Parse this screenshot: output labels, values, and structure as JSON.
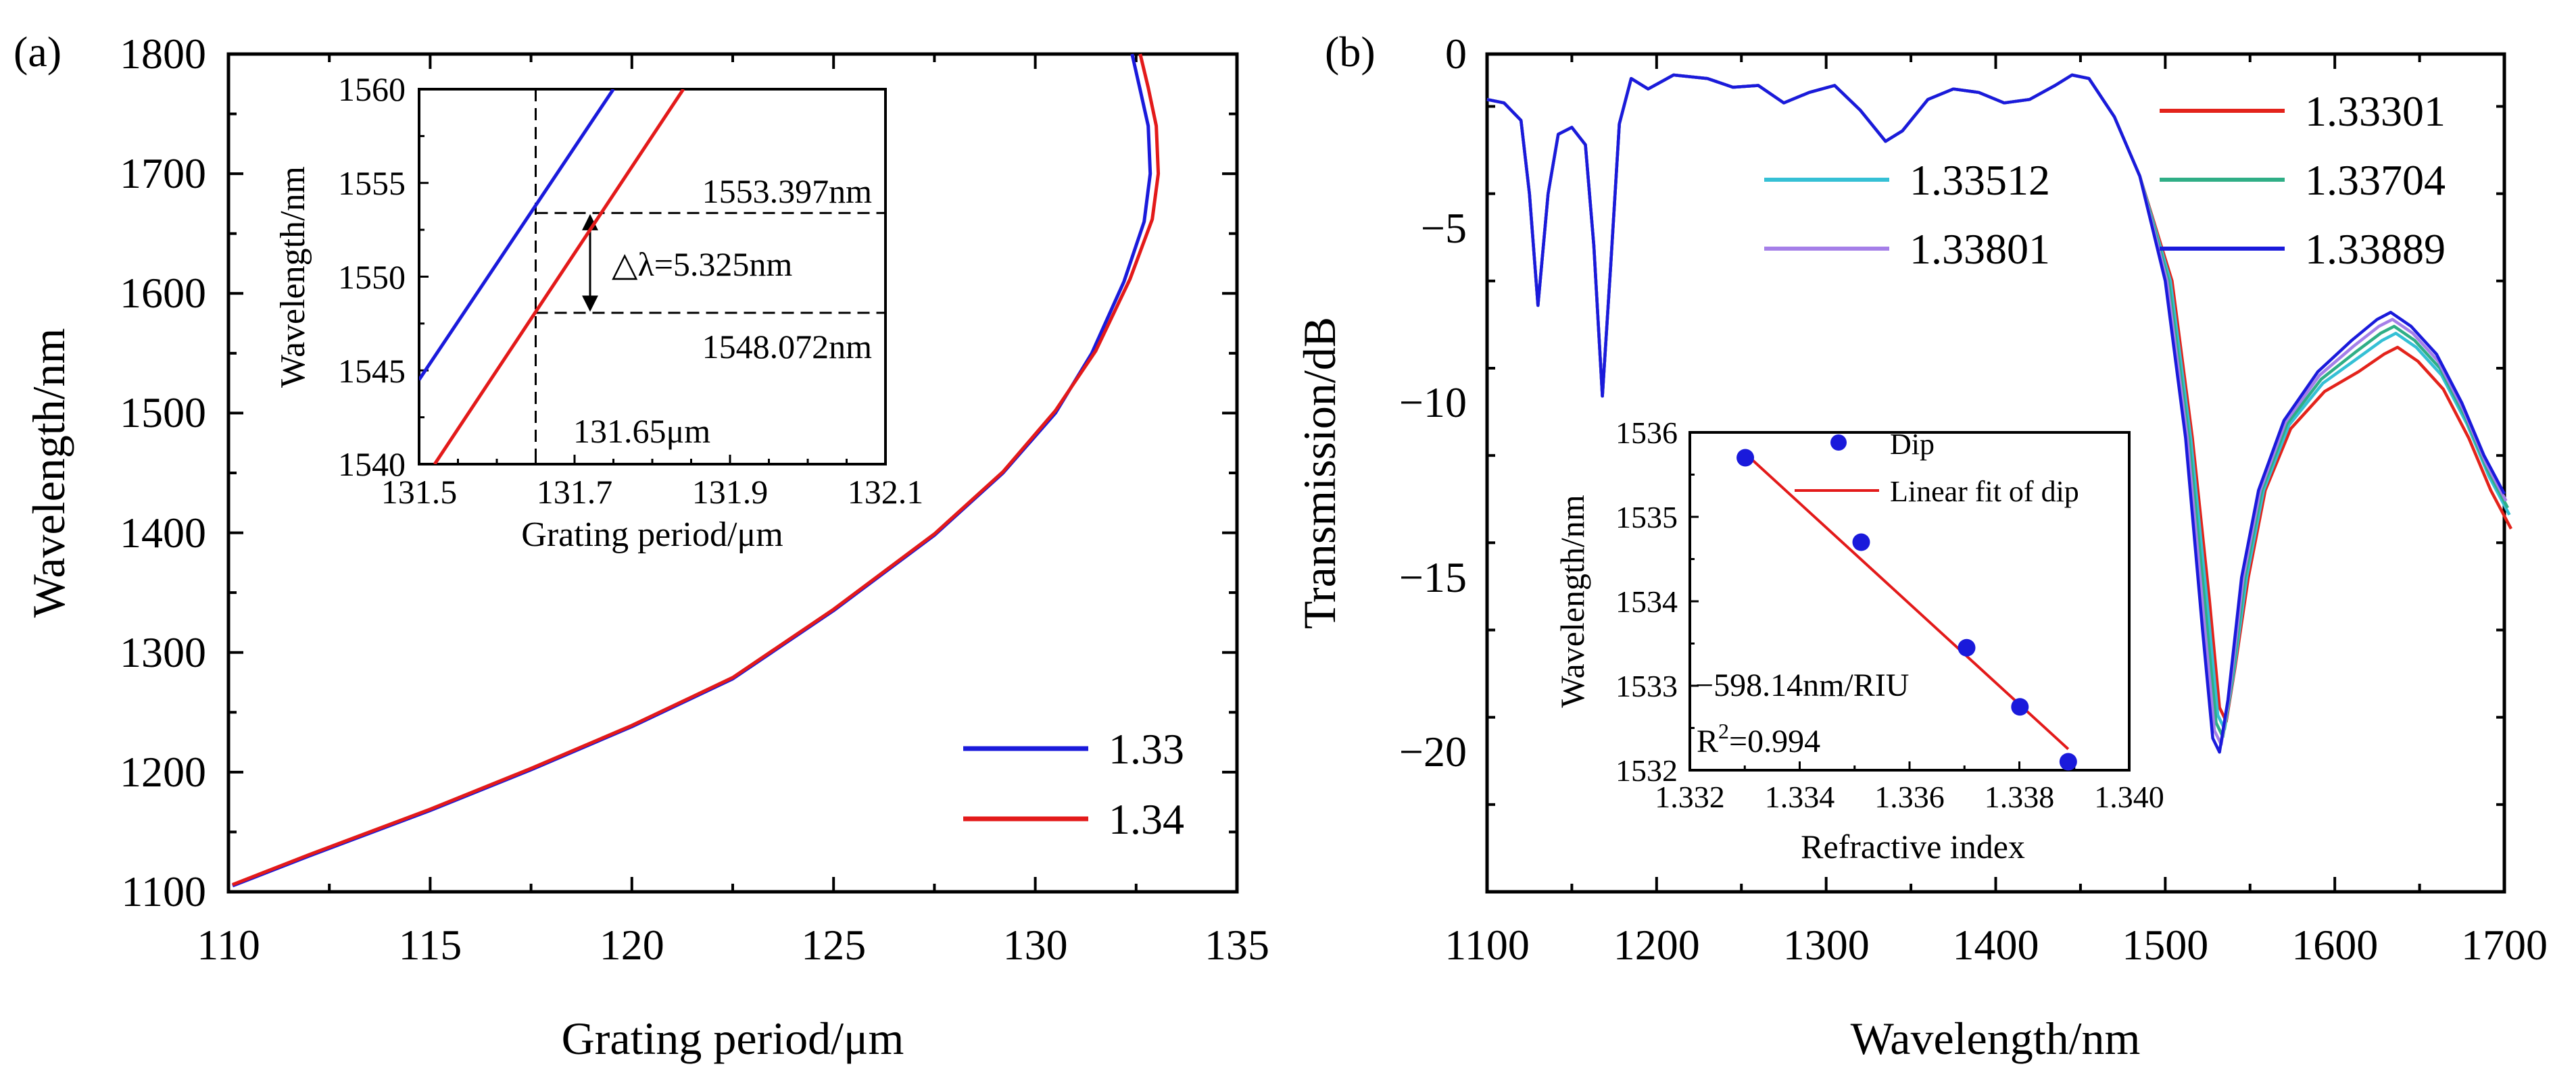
{
  "chart_data": [
    {
      "panel_label": "(a)",
      "type": "line",
      "xlabel": "Grating period/μm",
      "ylabel": "Wavelength/nm",
      "xlim": [
        110,
        135
      ],
      "ylim": [
        1100,
        1800
      ],
      "xticks": [
        110,
        115,
        120,
        125,
        130,
        135
      ],
      "yticks": [
        1100,
        1200,
        1300,
        1400,
        1500,
        1600,
        1700,
        1800
      ],
      "legend": "bottom-right",
      "series": [
        {
          "name": "1.33",
          "color": "#1a1adb",
          "points": [
            [
              110.1,
              1105
            ],
            [
              112,
              1130
            ],
            [
              115,
              1168
            ],
            [
              117.5,
              1202
            ],
            [
              120,
              1238
            ],
            [
              122.5,
              1278
            ],
            [
              125,
              1335
            ],
            [
              127.5,
              1398
            ],
            [
              129.2,
              1450
            ],
            [
              130.5,
              1500
            ],
            [
              131.4,
              1550
            ],
            [
              132.2,
              1610
            ],
            [
              132.7,
              1660
            ],
            [
              132.85,
              1700
            ],
            [
              132.8,
              1740
            ],
            [
              132.6,
              1770
            ],
            [
              132.4,
              1800
            ]
          ]
        },
        {
          "name": "1.34",
          "color": "#e31a1a",
          "points": [
            [
              110.1,
              1106
            ],
            [
              112,
              1131
            ],
            [
              115,
              1169
            ],
            [
              117.5,
              1203
            ],
            [
              120,
              1239
            ],
            [
              122.5,
              1279
            ],
            [
              125,
              1336
            ],
            [
              127.5,
              1399
            ],
            [
              129.2,
              1451
            ],
            [
              130.5,
              1502
            ],
            [
              131.5,
              1552
            ],
            [
              132.35,
              1612
            ],
            [
              132.9,
              1662
            ],
            [
              133.05,
              1700
            ],
            [
              133.0,
              1740
            ],
            [
              132.8,
              1772
            ],
            [
              132.6,
              1800
            ]
          ]
        }
      ],
      "inset": {
        "type": "line",
        "xlabel": "Grating period/μm",
        "ylabel": "Wavelength/nm",
        "xlim": [
          131.5,
          132.1
        ],
        "ylim": [
          1540,
          1560
        ],
        "xticks": [
          "131.5",
          "131.7",
          "131.9",
          "132.1"
        ],
        "yticks": [
          "1540",
          "1545",
          "1550",
          "1555",
          "1560"
        ],
        "series": [
          {
            "name": "1.33",
            "color": "#1a1adb",
            "points": [
              [
                131.5,
                1544.5
              ],
              [
                131.75,
                1560
              ]
            ]
          },
          {
            "name": "1.34",
            "color": "#e31a1a",
            "points": [
              [
                131.52,
                1540
              ],
              [
                131.84,
                1560
              ]
            ]
          }
        ],
        "vline_x": 131.65,
        "hlines_y": [
          1553.397,
          1548.072
        ],
        "annotations": {
          "upper": "1553.397nm",
          "lower": "1548.072nm",
          "delta": "△λ=5.325nm",
          "period": "131.65μm"
        }
      }
    },
    {
      "panel_label": "(b)",
      "type": "line",
      "xlabel": "Wavelength/nm",
      "ylabel": "Transmission/dB",
      "xlim": [
        1100,
        1700
      ],
      "ylim": [
        -24,
        0
      ],
      "xticks": [
        1100,
        1200,
        1300,
        1400,
        1500,
        1600,
        1700
      ],
      "yticks": [
        0,
        -5,
        -10,
        -15,
        -20
      ],
      "ytick_labels": [
        "0",
        "−5",
        "−10",
        "−15",
        "−20"
      ],
      "legend": "top-right",
      "base_spectrum": [
        [
          1100,
          -1.3
        ],
        [
          1110,
          -1.4
        ],
        [
          1120,
          -1.9
        ],
        [
          1125,
          -4.0
        ],
        [
          1130,
          -7.2
        ],
        [
          1136,
          -4.0
        ],
        [
          1142,
          -2.3
        ],
        [
          1150,
          -2.1
        ],
        [
          1158,
          -2.6
        ],
        [
          1163,
          -5.5
        ],
        [
          1168,
          -9.8
        ],
        [
          1173,
          -6.0
        ],
        [
          1178,
          -2.0
        ],
        [
          1185,
          -0.7
        ],
        [
          1195,
          -1.0
        ],
        [
          1210,
          -0.6
        ],
        [
          1230,
          -0.7
        ],
        [
          1245,
          -0.95
        ],
        [
          1260,
          -0.9
        ],
        [
          1275,
          -1.4
        ],
        [
          1290,
          -1.1
        ],
        [
          1305,
          -0.9
        ],
        [
          1320,
          -1.6
        ],
        [
          1335,
          -2.5
        ],
        [
          1345,
          -2.2
        ],
        [
          1360,
          -1.3
        ],
        [
          1375,
          -1.0
        ],
        [
          1390,
          -1.1
        ],
        [
          1405,
          -1.4
        ],
        [
          1420,
          -1.3
        ],
        [
          1435,
          -0.9
        ],
        [
          1445,
          -0.6
        ],
        [
          1455,
          -0.7
        ],
        [
          1470,
          -1.8
        ],
        [
          1485,
          -3.5
        ],
        [
          1500,
          -6.5
        ],
        [
          1512,
          -11.0
        ],
        [
          1522,
          -16.5
        ],
        [
          1528,
          -19.6
        ],
        [
          1532,
          -20.0
        ],
        [
          1537,
          -18.5
        ],
        [
          1545,
          -15.0
        ],
        [
          1555,
          -12.5
        ],
        [
          1570,
          -10.5
        ],
        [
          1590,
          -9.1
        ],
        [
          1610,
          -8.2
        ],
        [
          1625,
          -7.6
        ],
        [
          1633,
          -7.4
        ],
        [
          1645,
          -7.8
        ],
        [
          1660,
          -8.6
        ],
        [
          1675,
          -10.0
        ],
        [
          1688,
          -11.5
        ],
        [
          1700,
          -12.6
        ]
      ],
      "series": [
        {
          "name": "1.33301",
          "color": "#e3231b",
          "dx": 4,
          "dy_tail": -1.0
        },
        {
          "name": "1.33512",
          "color": "#35c0d5",
          "dx": 3,
          "dy_tail": -0.6
        },
        {
          "name": "1.33704",
          "color": "#2fae86",
          "dx": 2,
          "dy_tail": -0.4
        },
        {
          "name": "1.33801",
          "color": "#a57fe8",
          "dx": 1,
          "dy_tail": -0.2
        },
        {
          "name": "1.33889",
          "color": "#1a1adb",
          "dx": 0,
          "dy_tail": 0
        }
      ],
      "inset": {
        "type": "scatter",
        "xlabel": "Refractive index",
        "ylabel": "Wavelength/nm",
        "xlim": [
          1.332,
          1.34
        ],
        "ylim": [
          1532,
          1536
        ],
        "xticks": [
          "1.332",
          "1.334",
          "1.336",
          "1.338",
          "1.340"
        ],
        "yticks": [
          "1532",
          "1533",
          "1534",
          "1535",
          "1536"
        ],
        "points": [
          [
            1.33301,
            1535.7
          ],
          [
            1.33512,
            1534.7
          ],
          [
            1.33704,
            1533.45
          ],
          [
            1.33801,
            1532.75
          ],
          [
            1.33889,
            1532.1
          ]
        ],
        "fit_line": [
          [
            1.33301,
            1535.75
          ],
          [
            1.33889,
            1532.25
          ]
        ],
        "legend": {
          "points": "Dip",
          "line": "Linear fit of dip"
        },
        "annotations": {
          "slope": "−598.14nm/RIU",
          "r2_prefix": "R",
          "r2_sup": "2",
          "r2_value": "=0.994"
        }
      }
    }
  ]
}
